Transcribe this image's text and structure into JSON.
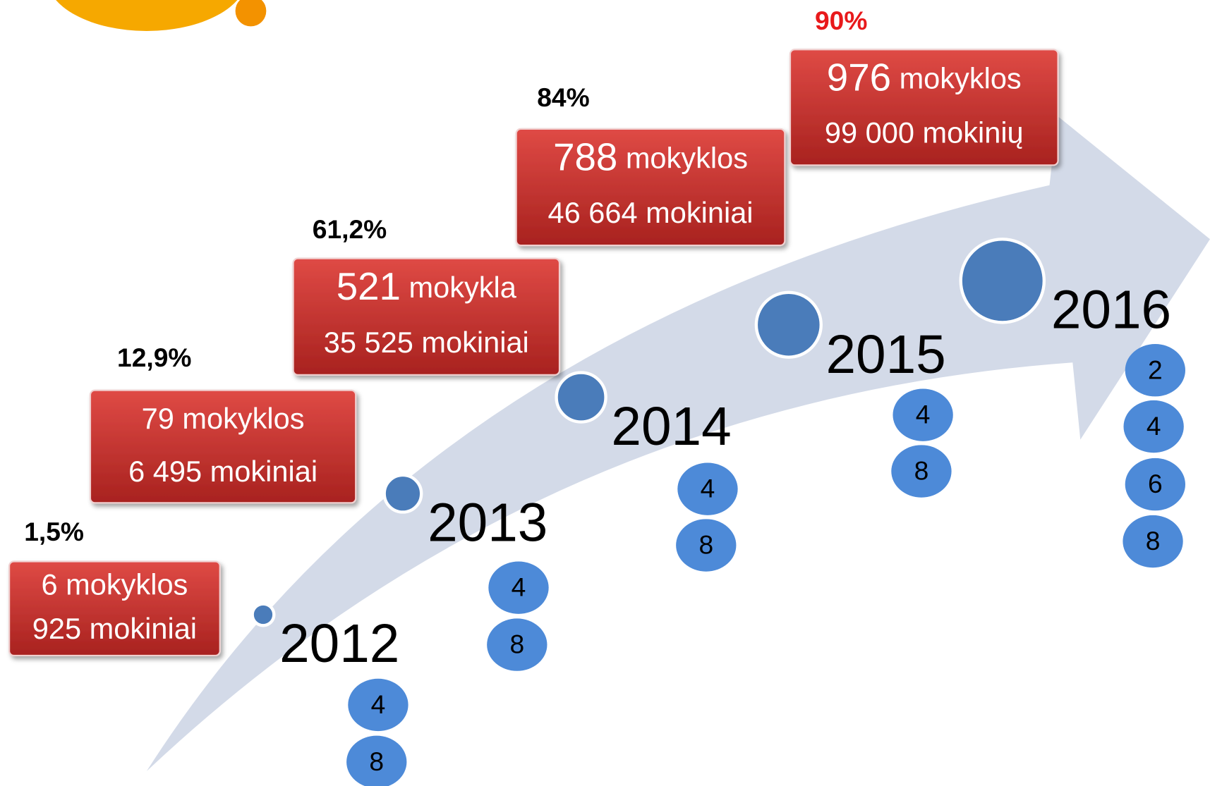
{
  "stages": [
    {
      "percent": "1,5%",
      "schools_number": "6",
      "schools_unit": "mokyklos",
      "students": "925 mokiniai",
      "year": "2012",
      "grades": [
        "4",
        "8"
      ]
    },
    {
      "percent": "12,9%",
      "schools_number": "79",
      "schools_unit": "mokyklos",
      "students": "6 495 mokiniai",
      "year": "2013",
      "grades": [
        "4",
        "8"
      ]
    },
    {
      "percent": "61,2%",
      "schools_number": "521",
      "schools_unit": "mokykla",
      "students": "35 525 mokiniai",
      "year": "2014",
      "grades": [
        "4",
        "8"
      ]
    },
    {
      "percent": "84%",
      "schools_number": "788",
      "schools_unit": "mokyklos",
      "students": "46 664 mokiniai",
      "year": "2015",
      "grades": [
        "4",
        "8"
      ]
    },
    {
      "percent": "90%",
      "schools_number": "976",
      "schools_unit": "mokyklos",
      "students": "99 000 mokinių",
      "year": "2016",
      "grades": [
        "2",
        "4",
        "6",
        "8"
      ]
    }
  ]
}
